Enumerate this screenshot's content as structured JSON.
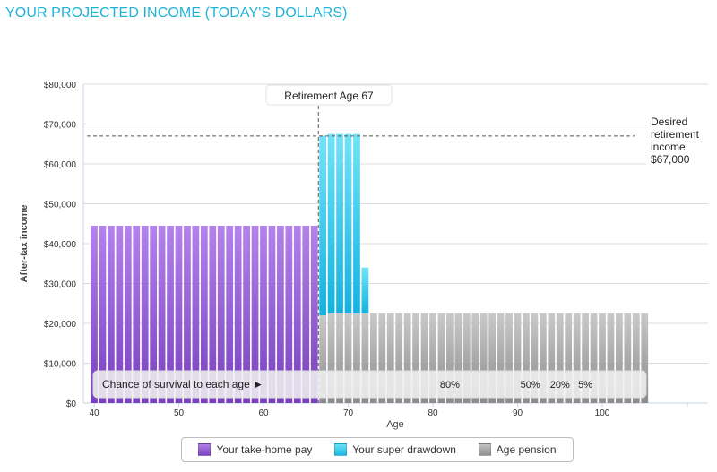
{
  "page": {
    "title": "YOUR PROJECTED INCOME (TODAY'S DOLLARS)"
  },
  "colors": {
    "take_home": "#8e5ad0",
    "super": "#26c3ea",
    "pension": "#a6a6a6",
    "title": "#1fb3d8"
  },
  "chart_data": {
    "type": "bar",
    "stacked": true,
    "title": "YOUR PROJECTED INCOME (TODAY'S DOLLARS)",
    "xlabel": "Age",
    "ylabel": "After-tax income",
    "xlim": [
      39,
      110
    ],
    "ylim": [
      0,
      80000
    ],
    "x_ticks": [
      40,
      50,
      60,
      70,
      80,
      90,
      100
    ],
    "y_ticks": [
      0,
      10000,
      20000,
      30000,
      40000,
      50000,
      60000,
      70000,
      80000
    ],
    "y_tick_labels": [
      "$0",
      "$10,000",
      "$20,000",
      "$30,000",
      "$40,000",
      "$50,000",
      "$60,000",
      "$70,000",
      "$80,000"
    ],
    "grid": true,
    "legend_position": "bottom",
    "series": [
      {
        "name": "Your take-home pay",
        "color": "#8e5ad0",
        "ranges": [
          {
            "from_age": 40,
            "to_age": 66,
            "value": 44500
          }
        ]
      },
      {
        "name": "Your super drawdown",
        "color": "#26c3ea",
        "ranges": [
          {
            "from_age": 67,
            "to_age": 67,
            "value": 45000
          },
          {
            "from_age": 68,
            "to_age": 71,
            "value": 45000
          },
          {
            "from_age": 72,
            "to_age": 72,
            "value": 11500
          }
        ]
      },
      {
        "name": "Age pension",
        "color": "#a6a6a6",
        "ranges": [
          {
            "from_age": 67,
            "to_age": 67,
            "value": 22000
          },
          {
            "from_age": 68,
            "to_age": 105,
            "value": 22500
          }
        ]
      }
    ],
    "reference_line": {
      "value": 67000,
      "label_lines": [
        "Desired",
        "retirement",
        "income",
        "$67,000"
      ]
    },
    "retirement_marker": {
      "age": 67,
      "label": "Retirement Age 67"
    },
    "survival_band": {
      "label": "Chance of survival to each age ►",
      "markers": [
        {
          "age": 82,
          "label": "80%"
        },
        {
          "age": 91.5,
          "label": "50%"
        },
        {
          "age": 95,
          "label": "20%"
        },
        {
          "age": 98,
          "label": "5%"
        }
      ]
    }
  }
}
